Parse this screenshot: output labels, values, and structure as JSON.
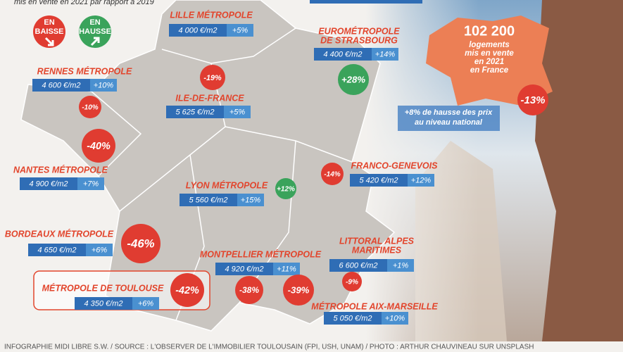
{
  "intro": "mis en vente en 2021 par rapport à 2019",
  "legend": {
    "down": [
      "EN",
      "BAISSE"
    ],
    "up": [
      "EN",
      "HAUSSE"
    ]
  },
  "national": {
    "count": "102 200",
    "count_text": [
      "logements",
      "mis en vente",
      "en 2021",
      "en France"
    ],
    "trend": "-13%",
    "prices": [
      "+8% de hausse des prix",
      "au niveau national"
    ]
  },
  "regions": [
    {
      "name": [
        "LILLE MÉTROPOLE"
      ],
      "price": "4 000 €/m2",
      "change": "+5%"
    },
    {
      "name": [
        "EUROMÉTROPOLE",
        "DE STRASBOURG"
      ],
      "price": "4 400 €/m2",
      "change": "+14%",
      "trend": "+28%"
    },
    {
      "name": [
        "RENNES MÉTROPOLE"
      ],
      "price": "4 600 €/m2",
      "change": "+10%",
      "trend": "-10%"
    },
    {
      "name": [
        "ILE-DE-FRANCE"
      ],
      "price": "5 625 €/m2",
      "change": "+5%",
      "trend": "-19%"
    },
    {
      "name": [
        "NANTES MÉTROPOLE"
      ],
      "price": "4 900 €/m2",
      "change": "+7%",
      "trend": "-40%"
    },
    {
      "name": [
        "LYON MÉTROPOLE"
      ],
      "price": "5 560 €/m2",
      "change": "+15%",
      "trend": "+12%"
    },
    {
      "name": [
        "FRANCO-GENEVOIS"
      ],
      "price": "5 420 €/m2",
      "change": "+12%",
      "trend": "-14%"
    },
    {
      "name": [
        "BORDEAUX MÉTROPOLE"
      ],
      "price": "4 650 €/m2",
      "change": "+6%",
      "trend": "-46%"
    },
    {
      "name": [
        "MONTPELLIER MÉTROPOLE"
      ],
      "price": "4 920 €/m2",
      "change": "+11%",
      "trend": "-38%"
    },
    {
      "name": [
        "LITTORAL ALPES",
        "MARITIMES"
      ],
      "price": "6 600 €/m2",
      "change": "+1%",
      "trend": "-9%"
    },
    {
      "name": [
        "MÉTROPOLE AIX-MARSEILLE"
      ],
      "price": "5 050 €/m2",
      "change": "+10%",
      "trend": "-39%"
    },
    {
      "name": [
        "MÉTROPOLE DE TOULOUSE"
      ],
      "price": "4 350 €/m2",
      "change": "+6%",
      "trend": "-42%"
    }
  ],
  "credit": "INFOGRAPHIE MIDI LIBRE S.W. / SOURCE : L'OBSERVER DE L'IMMOBILIER TOULOUSAIN (FPI, USH, UNAM) / PHOTO : ARTHUR CHAUVINEAU SUR UNSPLASH"
}
